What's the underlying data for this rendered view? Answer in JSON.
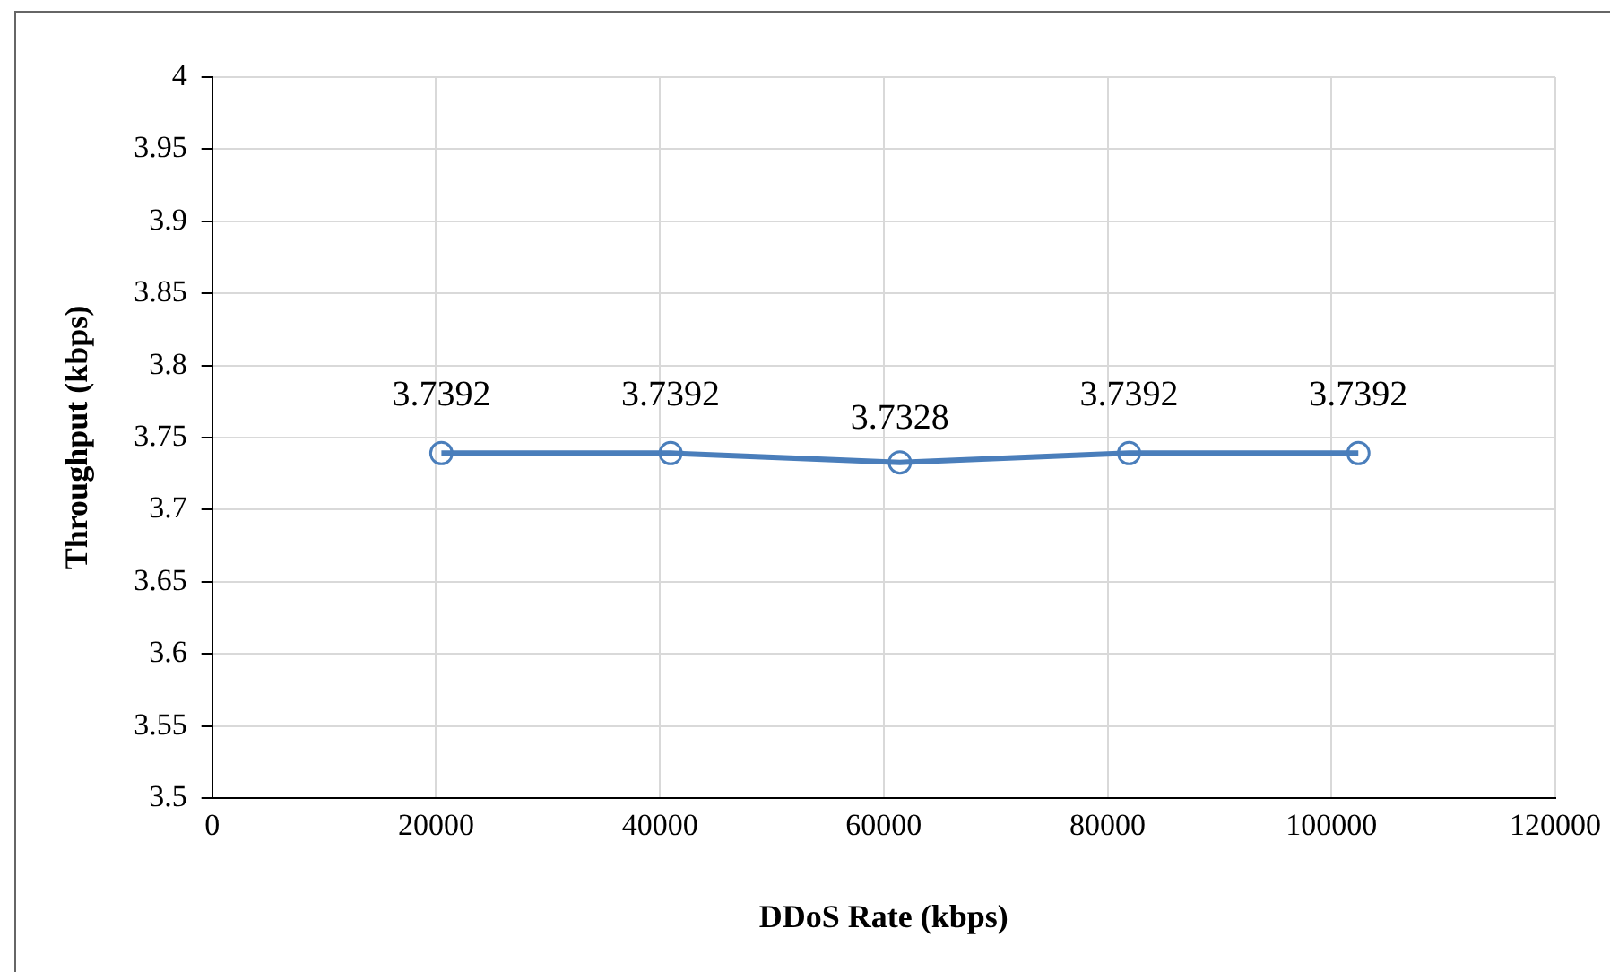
{
  "chart_data": {
    "type": "scatter",
    "xlabel": "DDoS Rate (kbps)",
    "ylabel": "Throughput (kbps)",
    "series": [
      {
        "type": "line",
        "color": "#4a7ebb",
        "x": [
          20480,
          40960,
          61440,
          81920,
          102400
        ],
        "values": [
          3.7392,
          3.7392,
          3.7328,
          3.7392,
          3.7392
        ]
      }
    ],
    "xlim": [
      0,
      120000
    ],
    "xticks": [
      0,
      20000,
      40000,
      60000,
      80000,
      100000,
      120000
    ],
    "ylim": [
      3.5,
      4
    ],
    "yticks": [
      3.5,
      3.55,
      3.6,
      3.65,
      3.7,
      3.75,
      3.8,
      3.85,
      3.9,
      3.95,
      4
    ],
    "grid": true,
    "legend": false,
    "marker": "circle",
    "line_style": "solid",
    "data_labels": true
  }
}
